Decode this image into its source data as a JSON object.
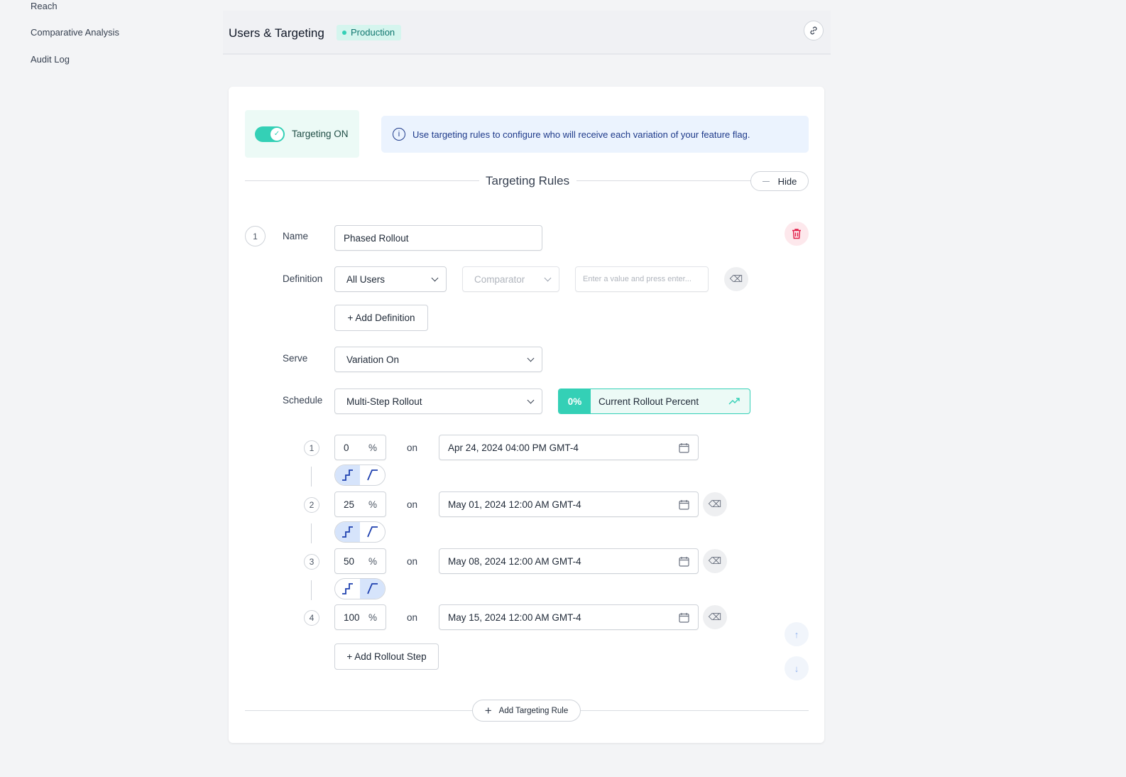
{
  "sidebar": {
    "items": [
      {
        "label": "Reach"
      },
      {
        "label": "Comparative Analysis"
      },
      {
        "label": "Audit Log"
      }
    ]
  },
  "header": {
    "title": "Users & Targeting",
    "environment": "Production",
    "link_icon": "link-icon"
  },
  "targeting": {
    "toggle_label": "Targeting ON",
    "toggle_on": true,
    "info": "Use targeting rules to configure who will receive each variation of your feature flag."
  },
  "rules": {
    "title": "Targeting Rules",
    "hide_label": "Hide",
    "add_rule_label": "Add Targeting Rule"
  },
  "rule": {
    "number": "1",
    "name_label": "Name",
    "name_value": "Phased Rollout",
    "definition_label": "Definition",
    "definition_value": "All Users",
    "comparator_placeholder": "Comparator",
    "value_placeholder": "Enter a value and press enter...",
    "add_definition": "+ Add Definition",
    "serve_label": "Serve",
    "serve_value": "Variation On",
    "schedule_label": "Schedule",
    "schedule_value": "Multi-Step Rollout",
    "current_percent": "0%",
    "current_label": "Current Rollout Percent",
    "add_step": "+ Add Rollout Step",
    "on_label": "on",
    "percent_sign": "%",
    "steps": [
      {
        "n": "1",
        "percent": "0",
        "date": "Apr 24, 2024 04:00 PM GMT-4"
      },
      {
        "n": "2",
        "percent": "25",
        "date": "May 01, 2024 12:00 AM GMT-4"
      },
      {
        "n": "3",
        "percent": "50",
        "date": "May 08, 2024 12:00 AM GMT-4"
      },
      {
        "n": "4",
        "percent": "100",
        "date": "May 15, 2024 12:00 AM GMT-4"
      }
    ],
    "transitions": [
      "step",
      "step",
      "linear"
    ]
  },
  "colors": {
    "accent": "#34d0b6",
    "info_bg": "#ebf3fe",
    "info_text": "#1e3a8a",
    "danger": "#e11d48"
  }
}
